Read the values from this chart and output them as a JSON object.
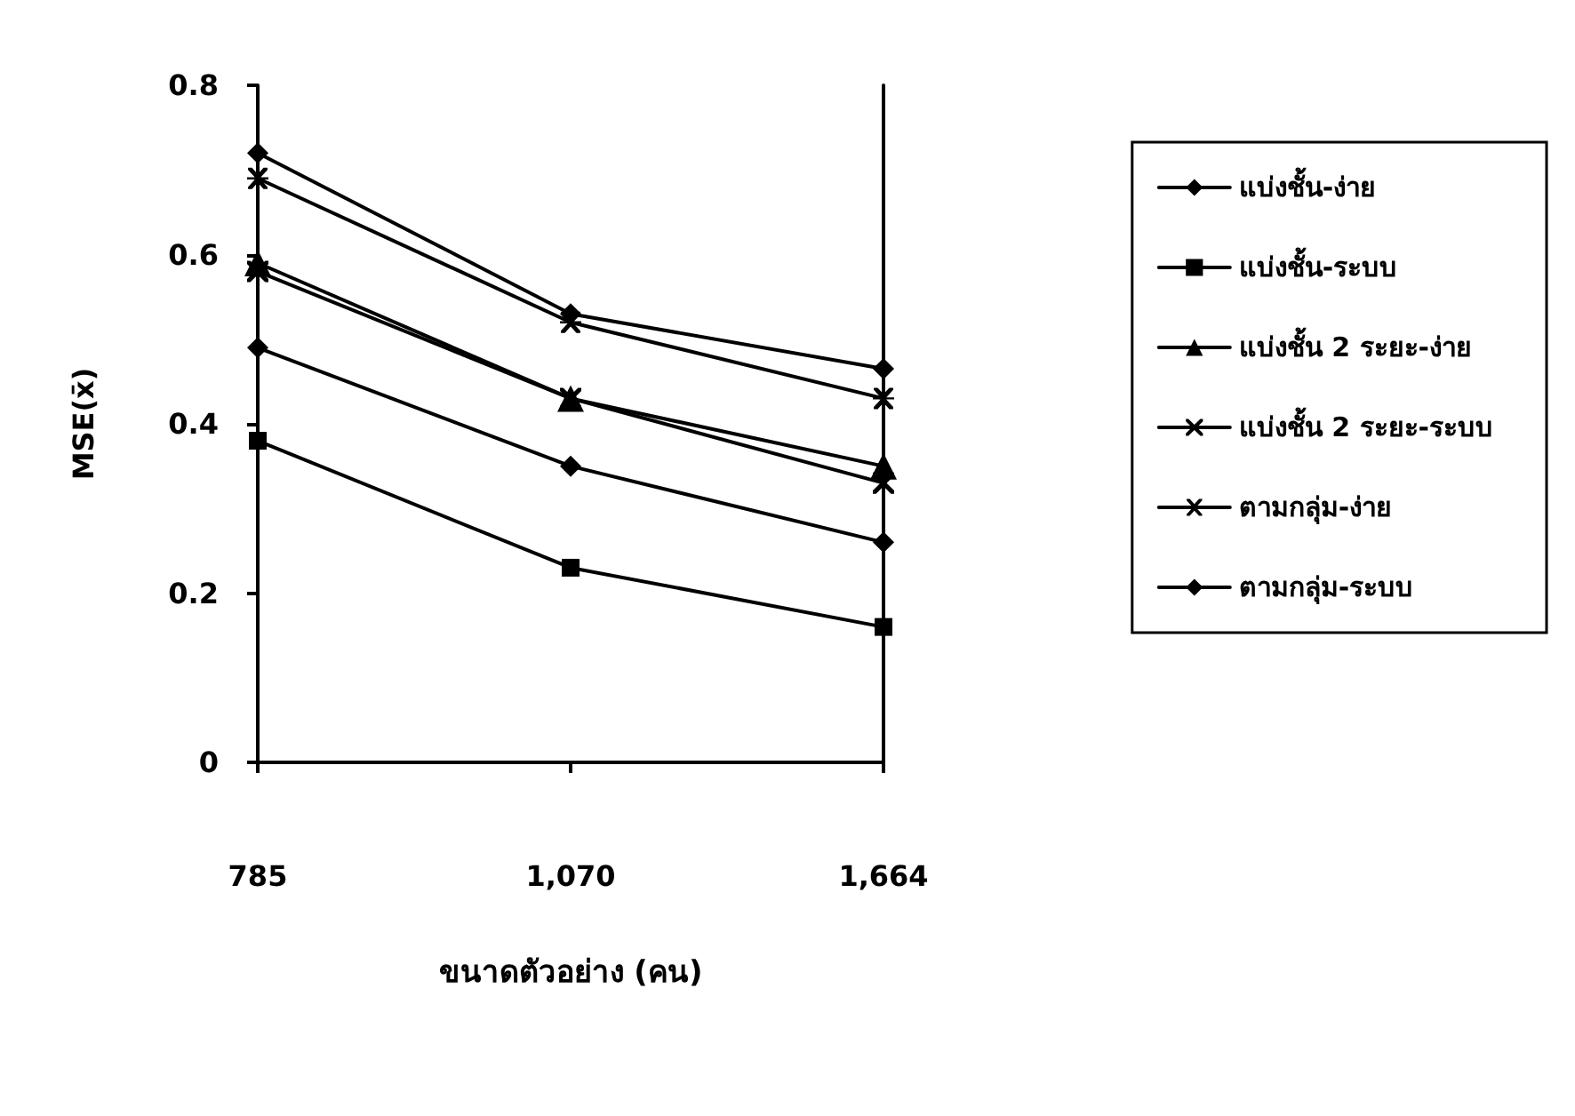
{
  "chart_data": {
    "type": "line",
    "xlabel": "ขนาดตัวอย่าง (คน)",
    "ylabel": "MSE(x̄)",
    "categories": [
      "785",
      "1,070",
      "1,664"
    ],
    "series": [
      {
        "name": "แบ่งชั้น-ง่าย",
        "color": "#000000",
        "marker": "diamond",
        "values": [
          0.49,
          0.35,
          0.26
        ]
      },
      {
        "name": "แบ่งชั้น-ระบบ",
        "color": "#000000",
        "marker": "square",
        "values": [
          0.38,
          0.23,
          0.16
        ]
      },
      {
        "name": "แบ่งชั้น 2 ระยะ-ง่าย",
        "color": "#000000",
        "marker": "triangle",
        "values": [
          0.59,
          0.43,
          0.35
        ]
      },
      {
        "name": "แบ่งชั้น 2 ระยะ-ระบบ",
        "color": "#000000",
        "marker": "cross",
        "values": [
          0.58,
          0.43,
          0.33
        ]
      },
      {
        "name": "ตามกลุ่ม-ง่าย",
        "color": "#000000",
        "marker": "star",
        "values": [
          0.69,
          0.52,
          0.43
        ]
      },
      {
        "name": "ตามกลุ่ม-ระบบ",
        "color": "#000000",
        "marker": "diamond",
        "values": [
          0.72,
          0.53,
          0.465
        ]
      }
    ],
    "ylim": [
      0,
      0.8
    ],
    "yticks": [
      0,
      0.2,
      0.4,
      0.6,
      0.8
    ],
    "grid": false,
    "legend": "right",
    "line_style": "solid"
  }
}
